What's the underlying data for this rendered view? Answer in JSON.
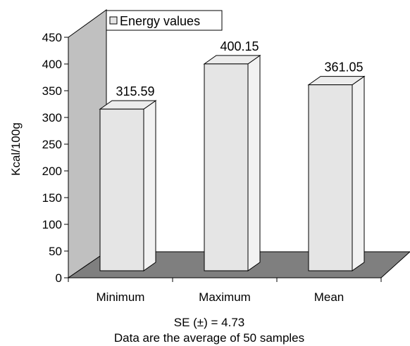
{
  "chart_data": {
    "type": "bar",
    "categories": [
      "Minimum",
      "Maximum",
      "Mean"
    ],
    "series": [
      {
        "name": "Energy values",
        "values": [
          315.59,
          400.15,
          361.05
        ]
      }
    ],
    "data_labels": [
      "315.59",
      "400.15",
      "361.05"
    ],
    "ylabel": "Kcal/100g",
    "xlabel": "",
    "ylim": [
      0,
      450
    ],
    "yticks": [
      0,
      50,
      100,
      150,
      200,
      250,
      300,
      350,
      400,
      450
    ],
    "notes": [
      "SE (±) = 4.73",
      "Data are the average of 50 samples"
    ],
    "legend": {
      "label": "Energy values",
      "placement": "top"
    },
    "grid": false,
    "style": "3d",
    "colors": {
      "bar_front": "#e5e5e5",
      "bar_side": "#f2f2f2",
      "bar_top": "#ececec",
      "back_wall": "#c0c0c0",
      "floor": "#7f7f7f",
      "stroke": "#000000"
    }
  }
}
